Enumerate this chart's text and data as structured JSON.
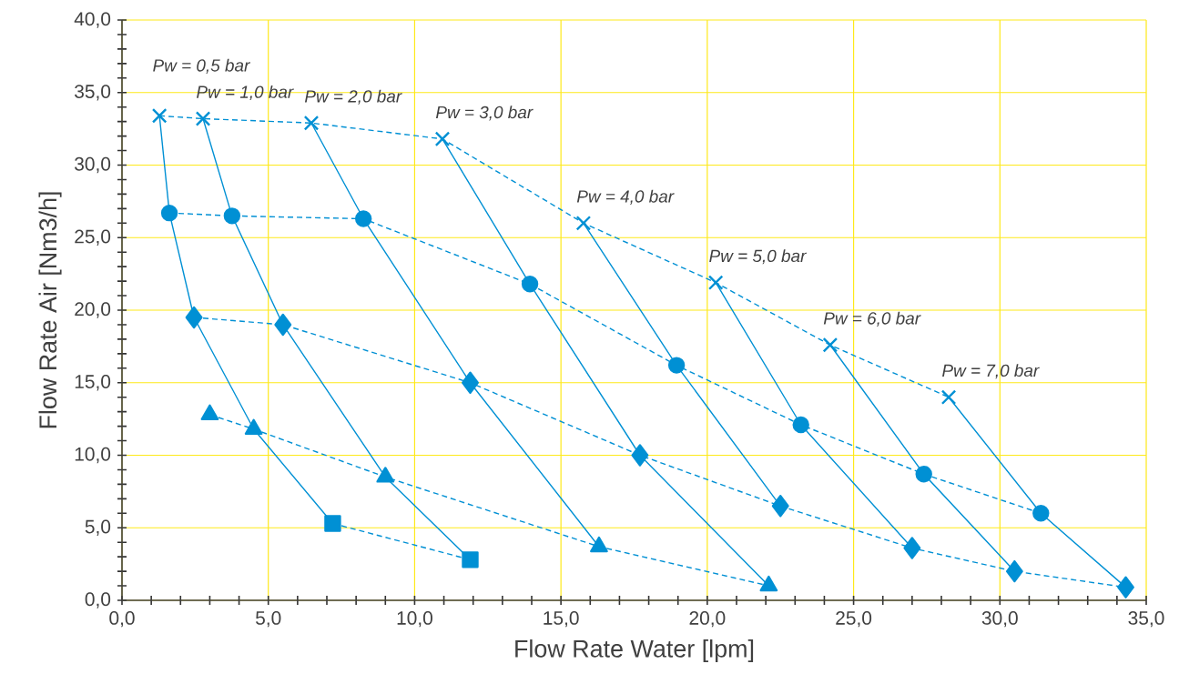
{
  "chart_data": {
    "type": "line",
    "xlabel": "Flow Rate Water [lpm]",
    "ylabel": "Flow Rate Air [Nm3/h]",
    "xlim": [
      0,
      35
    ],
    "ylim": [
      0,
      40
    ],
    "xticks": [
      {
        "value": 0,
        "label": "0,0"
      },
      {
        "value": 5,
        "label": "5,0"
      },
      {
        "value": 10,
        "label": "10,0"
      },
      {
        "value": 15,
        "label": "15,0"
      },
      {
        "value": 20,
        "label": "20,0"
      },
      {
        "value": 25,
        "label": "25,0"
      },
      {
        "value": 30,
        "label": "30,0"
      },
      {
        "value": 35,
        "label": "35,0"
      }
    ],
    "yticks": [
      {
        "value": 0,
        "label": "0,0"
      },
      {
        "value": 5,
        "label": "5,0"
      },
      {
        "value": 10,
        "label": "10,0"
      },
      {
        "value": 15,
        "label": "15,0"
      },
      {
        "value": 20,
        "label": "20,0"
      },
      {
        "value": 25,
        "label": "25,0"
      },
      {
        "value": 30,
        "label": "30,0"
      },
      {
        "value": 35,
        "label": "35,0"
      },
      {
        "value": 40,
        "label": "40,0"
      }
    ],
    "grid": true,
    "series": [
      {
        "color": "#0090d4",
        "marker": "cross",
        "line_style": "dashed",
        "x": [
          1.28,
          2.77,
          6.47,
          10.95,
          15.77,
          20.29,
          24.2,
          28.25
        ],
        "values": [
          33.4,
          33.2,
          32.9,
          31.8,
          26.0,
          21.9,
          17.6,
          14.0
        ]
      },
      {
        "color": "#0090d4",
        "marker": "circle",
        "line_style": "dashed",
        "x": [
          1.62,
          3.76,
          8.25,
          13.94,
          18.95,
          23.2,
          27.4,
          31.4
        ],
        "values": [
          26.7,
          26.5,
          26.3,
          21.8,
          16.2,
          12.1,
          8.7,
          6.0
        ]
      },
      {
        "color": "#0090d4",
        "marker": "diamond",
        "line_style": "dashed",
        "x": [
          2.46,
          5.5,
          11.9,
          17.7,
          22.5,
          27.0,
          30.5,
          34.3
        ],
        "values": [
          19.5,
          19.0,
          15.0,
          10.0,
          6.5,
          3.6,
          2.0,
          0.9
        ]
      },
      {
        "color": "#0090d4",
        "marker": "triangle",
        "line_style": "dashed",
        "x": [
          3.0,
          4.5,
          9.0,
          16.3,
          22.1
        ],
        "values": [
          12.8,
          11.8,
          8.5,
          3.7,
          1.0
        ]
      },
      {
        "color": "#0090d4",
        "marker": "square",
        "line_style": "dashed",
        "x": [
          7.2,
          11.9
        ],
        "values": [
          5.3,
          2.8
        ]
      },
      {
        "color": "#0090d4",
        "marker": "none",
        "line_style": "solid",
        "x": [
          1.28,
          1.62,
          2.46,
          4.5,
          7.2
        ],
        "values": [
          33.4,
          26.7,
          19.5,
          11.8,
          5.3
        ]
      },
      {
        "color": "#0090d4",
        "marker": "none",
        "line_style": "solid",
        "x": [
          2.77,
          3.76,
          5.5,
          9.0,
          11.9
        ],
        "values": [
          33.2,
          26.5,
          19.0,
          8.5,
          2.8
        ]
      },
      {
        "color": "#0090d4",
        "marker": "none",
        "line_style": "solid",
        "x": [
          6.47,
          8.25,
          11.9,
          16.3
        ],
        "values": [
          32.9,
          26.3,
          15.0,
          3.7
        ]
      },
      {
        "color": "#0090d4",
        "marker": "none",
        "line_style": "solid",
        "x": [
          10.95,
          13.94,
          17.7,
          22.1
        ],
        "values": [
          31.8,
          21.8,
          10.0,
          1.0
        ]
      },
      {
        "color": "#0090d4",
        "marker": "none",
        "line_style": "solid",
        "x": [
          15.77,
          18.95,
          22.5
        ],
        "values": [
          26.0,
          16.2,
          6.5
        ]
      },
      {
        "color": "#0090d4",
        "marker": "none",
        "line_style": "solid",
        "x": [
          20.29,
          23.2,
          27.0
        ],
        "values": [
          21.9,
          12.1,
          3.6
        ]
      },
      {
        "color": "#0090d4",
        "marker": "none",
        "line_style": "solid",
        "x": [
          24.2,
          27.4,
          30.5
        ],
        "values": [
          17.6,
          8.7,
          2.0
        ]
      },
      {
        "color": "#0090d4",
        "marker": "none",
        "line_style": "solid",
        "x": [
          28.25,
          31.4,
          34.3
        ],
        "values": [
          14.0,
          6.0,
          0.9
        ]
      }
    ],
    "annotations": [
      {
        "text": "Pw = 0,5 bar",
        "x": 1.28,
        "y": 33.4
      },
      {
        "text": "Pw = 1,0 bar",
        "x": 2.77,
        "y": 33.2
      },
      {
        "text": "Pw = 2,0 bar",
        "x": 6.47,
        "y": 32.9
      },
      {
        "text": "Pw = 3,0 bar",
        "x": 10.95,
        "y": 31.8
      },
      {
        "text": "Pw = 4,0 bar",
        "x": 15.77,
        "y": 26.0
      },
      {
        "text": "Pw = 5,0 bar",
        "x": 20.29,
        "y": 21.9
      },
      {
        "text": "Pw = 6,0 bar",
        "x": 24.2,
        "y": 17.6
      },
      {
        "text": "Pw = 7,0 bar",
        "x": 28.25,
        "y": 14.0
      }
    ]
  }
}
